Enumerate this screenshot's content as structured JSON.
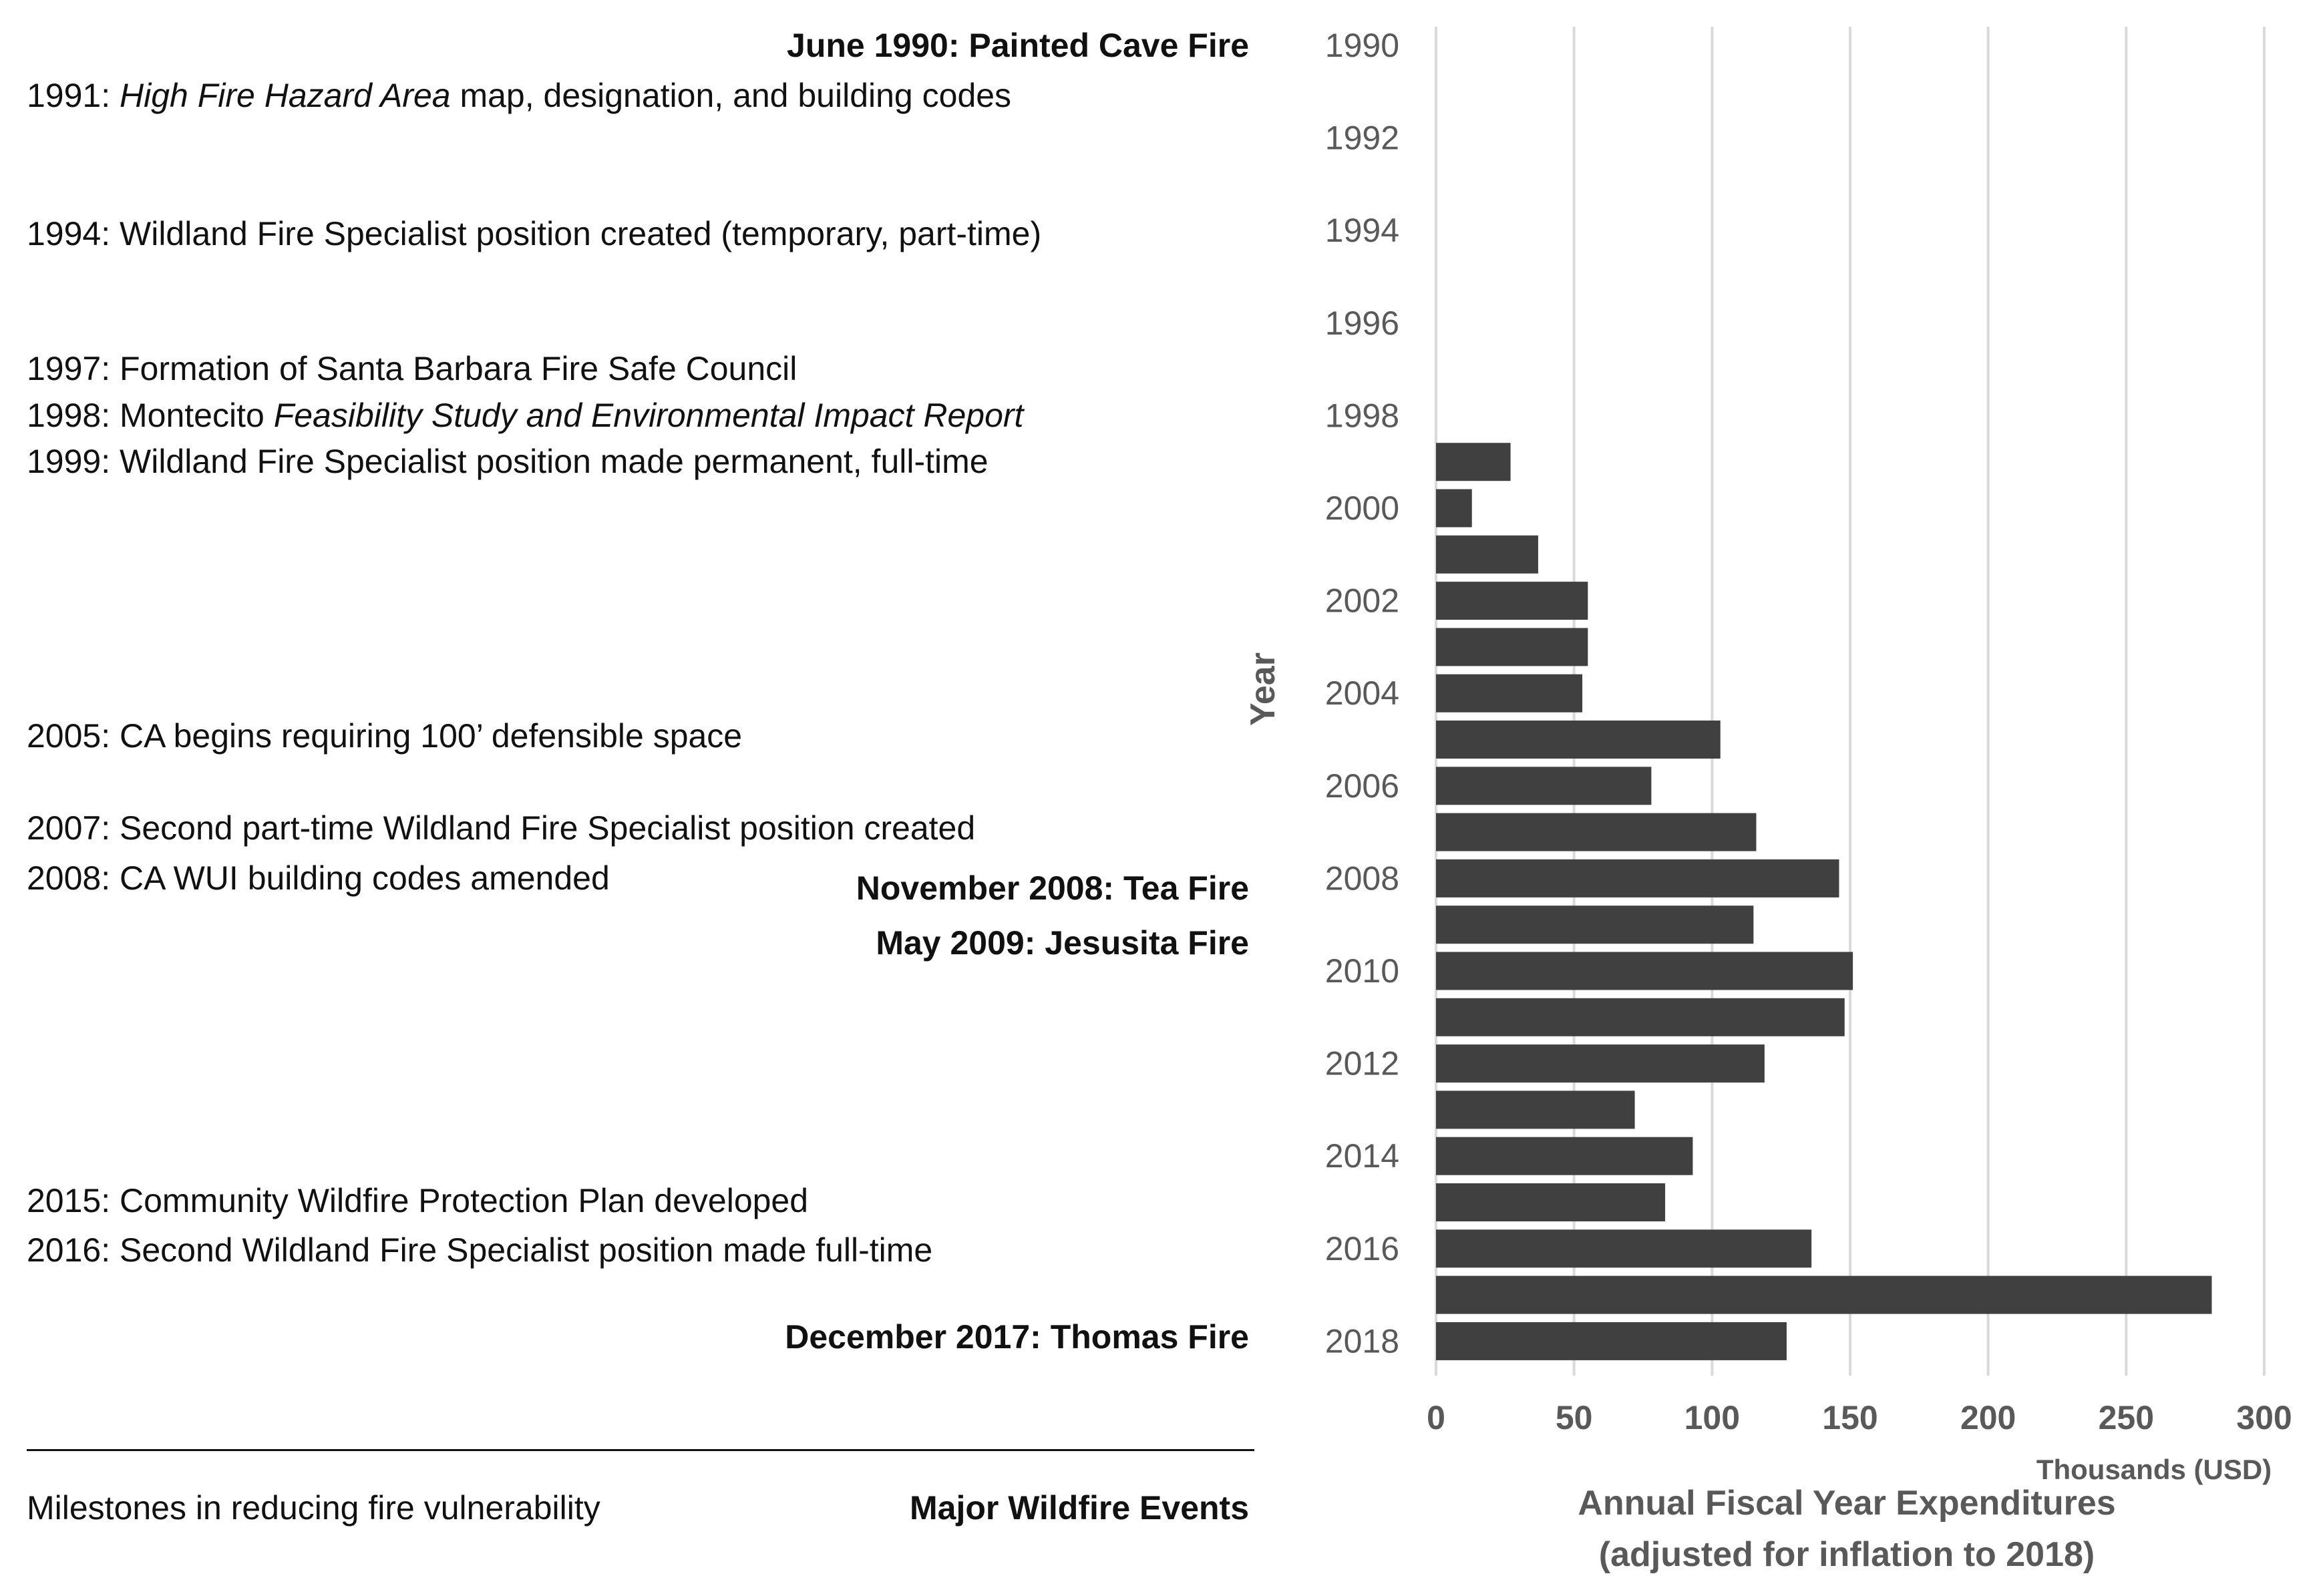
{
  "milestones": [
    {
      "year": "1991",
      "pre": "1991: ",
      "em": "High Fire Hazard Area",
      "post": " map, designation, and building codes"
    },
    {
      "year": "1994",
      "pre": "1994: Wildland Fire Specialist position created (temporary, part-time)",
      "em": "",
      "post": ""
    },
    {
      "year": "1997",
      "pre": "1997: Formation of Santa Barbara Fire Safe Council",
      "em": "",
      "post": ""
    },
    {
      "year": "1998",
      "pre": "1998: Montecito ",
      "em": "Feasibility Study and Environmental Impact Report",
      "post": ""
    },
    {
      "year": "1999",
      "pre": "1999: Wildland Fire Specialist position made permanent, full-time",
      "em": "",
      "post": ""
    },
    {
      "year": "2005",
      "pre": "2005: CA begins requiring 100’ defensible space",
      "em": "",
      "post": ""
    },
    {
      "year": "2007",
      "pre": "2007: Second part-time Wildland Fire Specialist position created",
      "em": "",
      "post": ""
    },
    {
      "year": "2008",
      "pre": "2008: CA WUI building codes amended",
      "em": "",
      "post": ""
    },
    {
      "year": "2015",
      "pre": "2015: Community Wildfire Protection Plan developed",
      "em": "",
      "post": ""
    },
    {
      "year": "2016",
      "pre": "2016: Second Wildland Fire Specialist position made full-time",
      "em": "",
      "post": ""
    }
  ],
  "events": [
    "June 1990: Painted Cave Fire",
    "November 2008: Tea Fire",
    "May 2009: Jesusita Fire",
    "December 2017: Thomas Fire"
  ],
  "legend": {
    "milestones_label": "Milestones in reducing fire vulnerability",
    "events_label": "Major Wildfire Events"
  },
  "colors": {
    "bar": "#404040",
    "grid": "#d9d9d9",
    "axis_text": "#595959",
    "text": "#111111"
  },
  "chart_data": {
    "type": "bar",
    "orientation": "horizontal",
    "ylabel": "Year",
    "xlabel": "Annual Fiscal Year Expenditures (adjusted for inflation to 2018)",
    "xlabel_lines": [
      "Annual Fiscal Year Expenditures",
      "(adjusted for inflation to 2018)"
    ],
    "xunit": "Thousands (USD)",
    "xlim": [
      0,
      300
    ],
    "xticks": [
      0,
      50,
      100,
      150,
      200,
      250,
      300
    ],
    "grid": true,
    "year_range": [
      1990,
      2018
    ],
    "ytick_labels": [
      "1990",
      "1992",
      "1994",
      "1996",
      "1998",
      "2000",
      "2002",
      "2004",
      "2006",
      "2008",
      "2010",
      "2012",
      "2014",
      "2016",
      "2018"
    ],
    "categories": [
      1999,
      2000,
      2001,
      2002,
      2003,
      2004,
      2005,
      2006,
      2007,
      2008,
      2009,
      2010,
      2011,
      2012,
      2013,
      2014,
      2015,
      2016,
      2017,
      2018
    ],
    "values": [
      27,
      13,
      37,
      55,
      55,
      53,
      103,
      78,
      116,
      146,
      115,
      151,
      148,
      119,
      72,
      93,
      83,
      136,
      281,
      127
    ]
  }
}
